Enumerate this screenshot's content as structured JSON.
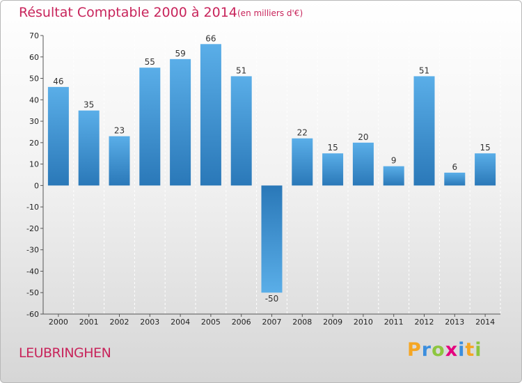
{
  "title": "Résultat Comptable 2000 à 2014",
  "subtitle": "(en milliers d'€)",
  "town": "LEUBRINGHEN",
  "logo": {
    "text": "Proxiti",
    "letters": [
      "P",
      "r",
      "o",
      "x",
      "i",
      "t",
      "i"
    ],
    "colors": [
      "#f5a623",
      "#3b8ede",
      "#8dc63f",
      "#e5007e",
      "#3b8ede",
      "#f5a623",
      "#8dc63f"
    ]
  },
  "colors": {
    "title": "#c8245b",
    "bar_light": "#5aaee8",
    "bar_dark": "#2a78b8",
    "grid": "#ffffff"
  },
  "chart_data": {
    "type": "bar",
    "title": "Résultat Comptable 2000 à 2014",
    "subtitle": "(en milliers d'€)",
    "xlabel": "",
    "ylabel": "",
    "categories": [
      "2000",
      "2001",
      "2002",
      "2003",
      "2004",
      "2005",
      "2006",
      "2007",
      "2008",
      "2009",
      "2010",
      "2011",
      "2012",
      "2013",
      "2014"
    ],
    "values": [
      46,
      35,
      23,
      55,
      59,
      66,
      51,
      -50,
      22,
      15,
      20,
      9,
      51,
      6,
      15
    ],
    "ylim": [
      -60,
      70
    ],
    "yticks": [
      70,
      60,
      50,
      40,
      30,
      20,
      10,
      0,
      -10,
      -20,
      -30,
      -40,
      -50,
      -60
    ],
    "grid": true,
    "grid_style": "dashed-vertical"
  }
}
